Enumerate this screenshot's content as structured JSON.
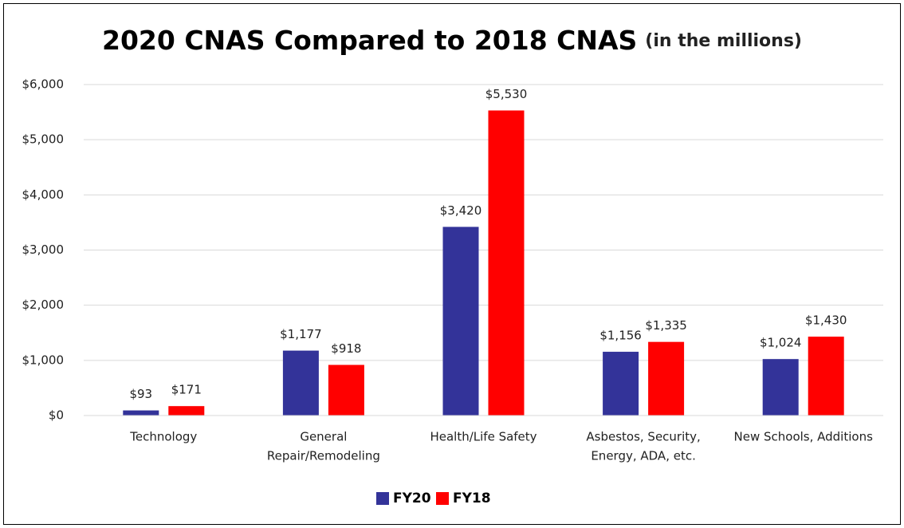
{
  "chart_data": {
    "type": "bar",
    "title": "2020 CNAS Compared to 2018 CNAS",
    "subtitle": "(in the millions)",
    "categories": [
      [
        "Technology"
      ],
      [
        "General",
        "Repair/Remodeling"
      ],
      [
        "Health/Life Safety"
      ],
      [
        "Asbestos, Security,",
        "Energy, ADA, etc."
      ],
      [
        "New Schools, Additions"
      ]
    ],
    "series": [
      {
        "name": "FY20",
        "color": "#333399",
        "values": [
          93,
          1177,
          3420,
          1156,
          1024
        ],
        "value_labels": [
          "$93",
          "$1,177",
          "$3,420",
          "$1,156",
          "$1,024"
        ]
      },
      {
        "name": "FY18",
        "color": "#ff0000",
        "values": [
          171,
          918,
          5530,
          1335,
          1430
        ],
        "value_labels": [
          "$171",
          "$918",
          "$5,530",
          "$1,335",
          "$1,430"
        ]
      }
    ],
    "ylim": [
      0,
      6000
    ],
    "yticks": [
      {
        "value": 0,
        "label": "$0"
      },
      {
        "value": 1000,
        "label": "$1,000"
      },
      {
        "value": 2000,
        "label": "$2,000"
      },
      {
        "value": 3000,
        "label": "$3,000"
      },
      {
        "value": 4000,
        "label": "$4,000"
      },
      {
        "value": 5000,
        "label": "$5,000"
      },
      {
        "value": 6000,
        "label": "$6,000"
      }
    ],
    "grid": true,
    "legend": "bottom"
  }
}
